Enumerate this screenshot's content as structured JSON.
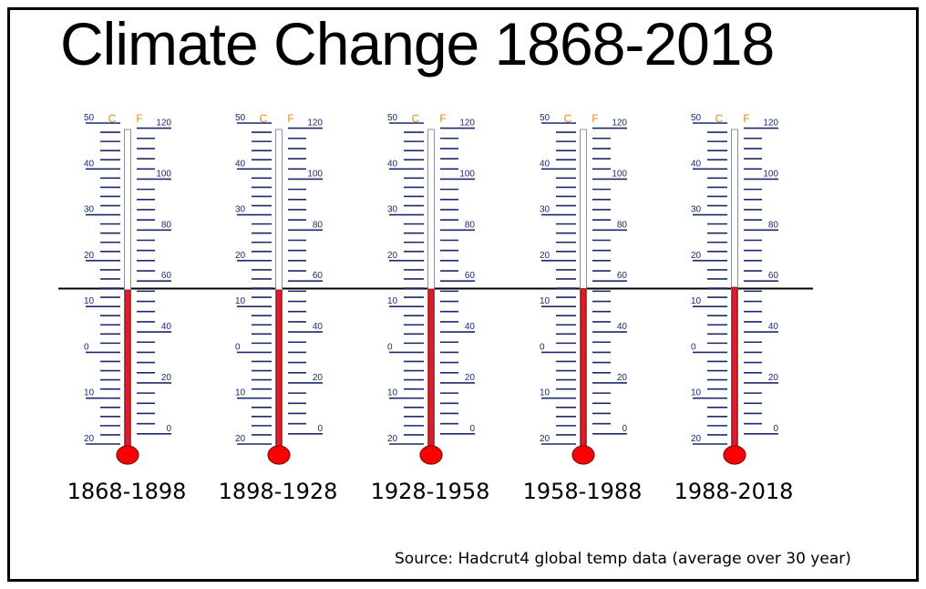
{
  "title": "Climate Change 1868-2018",
  "source": "Source: Hadcrut4 global temp data (average over 30 year)",
  "colors": {
    "mercury": "#e21b24",
    "bulb": "#ff0000",
    "scale": "#1b2a6b",
    "units": "#e08a1a",
    "reference_line": "#000000"
  },
  "chart_data": {
    "type": "thermometer",
    "unit_labels": {
      "celsius": "C",
      "fahrenheit": "F"
    },
    "celsius_ticks": [
      "50",
      "40",
      "30",
      "20",
      "10",
      "0",
      "10",
      "20"
    ],
    "fahrenheit_ticks": [
      "120",
      "100",
      "80",
      "60",
      "40",
      "20",
      "0"
    ],
    "celsius_range": [
      -20,
      50
    ],
    "fahrenheit_range": [
      0,
      120
    ],
    "reference_line_celsius": 13.9,
    "thermometers": [
      {
        "period": "1868-1898",
        "celsius": 13.6
      },
      {
        "period": "1898-1928",
        "celsius": 13.6
      },
      {
        "period": "1928-1958",
        "celsius": 13.8
      },
      {
        "period": "1958-1988",
        "celsius": 13.9
      },
      {
        "period": "1988-2018",
        "celsius": 14.2
      }
    ]
  }
}
